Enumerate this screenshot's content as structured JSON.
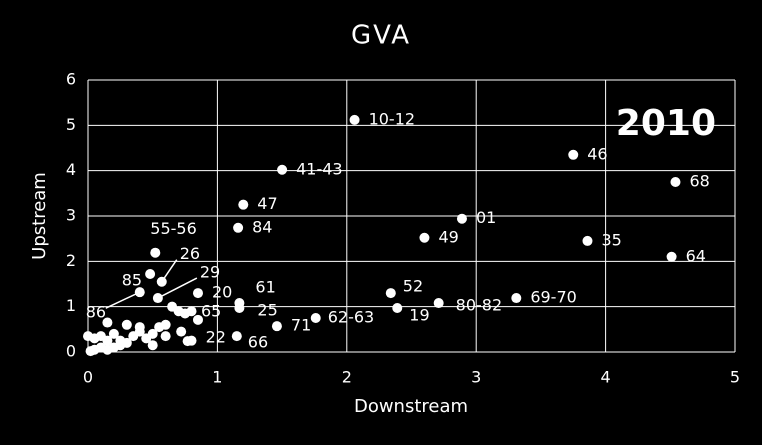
{
  "chart_data": {
    "type": "scatter",
    "title": "GVA",
    "annotation": "2010",
    "x_label": "Downstream",
    "y_label": "Upstream",
    "color": "#ffffff",
    "grid": true,
    "xlim": [
      0,
      5
    ],
    "ylim": [
      0,
      6
    ],
    "xticks": [
      0,
      1,
      2,
      3,
      4,
      5
    ],
    "yticks": [
      0,
      1,
      2,
      3,
      4,
      5,
      6
    ],
    "x": [
      2.06,
      3.75,
      4.54,
      1.5,
      1.2,
      1.16,
      2.89,
      2.6,
      3.86,
      4.51,
      0.52,
      0.57,
      0.48,
      0.54,
      0.85,
      1.17,
      1.17,
      2.34,
      2.71,
      3.31,
      2.39,
      0.85,
      1.46,
      1.76,
      0.4,
      0.77,
      1.15,
      0,
      0.05,
      0.1,
      0.15,
      0.2,
      0.25,
      0.3,
      0.35,
      0.4,
      0.45,
      0.5,
      0.55,
      0.6,
      0.65,
      0.7,
      0.75,
      0.8,
      0.05,
      0.1,
      0.2,
      0.15,
      0.3,
      0.6,
      0.72,
      0.25,
      0.02,
      0.5,
      0.8,
      0.15,
      0.4
    ],
    "values": [
      5.12,
      4.35,
      3.75,
      4.02,
      3.25,
      2.74,
      2.94,
      2.52,
      2.45,
      2.1,
      2.19,
      1.55,
      1.72,
      1.19,
      1.3,
      1.08,
      0.97,
      1.3,
      1.08,
      1.19,
      0.97,
      0.71,
      0.57,
      0.75,
      1.32,
      0.24,
      0.35,
      0.35,
      0.05,
      0.1,
      0.25,
      0.1,
      0.15,
      0.2,
      0.35,
      0.45,
      0.3,
      0.15,
      0.55,
      0.35,
      1.0,
      0.9,
      0.85,
      0.9,
      0.3,
      0.35,
      0.4,
      0.65,
      0.6,
      0.6,
      0.45,
      0.25,
      0.02,
      0.4,
      0.25,
      0.05,
      0.55
    ],
    "point_labels": [
      "10-12",
      "46",
      "68",
      "41-43",
      "47",
      "84",
      "01",
      "49",
      "35",
      "64",
      "55-56",
      "26",
      "85",
      "29",
      "20",
      "61",
      "25",
      "52",
      "80-82",
      "69-70",
      "19",
      "65",
      "71",
      "62-63",
      "86",
      "22",
      "66",
      null,
      null,
      null,
      null,
      null,
      null,
      null,
      null,
      null,
      null,
      null,
      null,
      null,
      null,
      null,
      null,
      null,
      null,
      null,
      null,
      null,
      null,
      null,
      null,
      null,
      null,
      null,
      null,
      null,
      null
    ]
  }
}
